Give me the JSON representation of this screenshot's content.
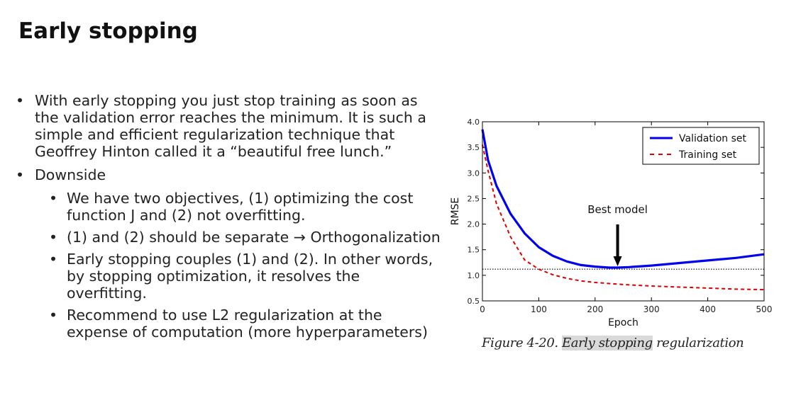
{
  "title": "Early stopping",
  "bullets": [
    {
      "text": "With early stopping you just stop training as soon as the validation error reaches the minimum. It is such a simple and efficient regularization technique that Geoffrey Hinton called it a “beautiful free lunch.”"
    },
    {
      "text": "Downside",
      "sub": [
        "We have two objectives, (1) optimizing the cost function J and (2) not overfitting.",
        "(1) and (2) should be separate → Orthogonalization",
        "Early stopping couples (1) and (2). In other words, by stopping optimization, it resolves the overfitting.",
        "Recommend to use L2 regularization at the expense of computation (more hyperparameters)"
      ]
    }
  ],
  "caption": {
    "prefix": "Figure 4-20. ",
    "highlight": "Early stopping",
    "suffix": " regularization"
  },
  "chart_data": {
    "type": "line",
    "xlabel": "Epoch",
    "ylabel": "RMSE",
    "xlim": [
      0,
      500
    ],
    "ylim": [
      0.5,
      4.0
    ],
    "xticks": [
      0,
      100,
      200,
      300,
      400,
      500
    ],
    "yticks": [
      0.5,
      1.0,
      1.5,
      2.0,
      2.5,
      3.0,
      3.5,
      4.0
    ],
    "legend_position": "top-right",
    "reference_line": {
      "y": 1.12,
      "style": "dotted"
    },
    "annotation": {
      "text": "Best model",
      "x": 240,
      "y": 1.15
    },
    "series": [
      {
        "name": "Validation set",
        "color": "#0000ee",
        "style": "solid",
        "x": [
          0,
          10,
          25,
          50,
          75,
          100,
          125,
          150,
          175,
          200,
          225,
          240,
          260,
          300,
          350,
          400,
          450,
          500
        ],
        "y": [
          3.85,
          3.25,
          2.75,
          2.2,
          1.82,
          1.55,
          1.38,
          1.27,
          1.2,
          1.17,
          1.15,
          1.15,
          1.16,
          1.19,
          1.24,
          1.29,
          1.34,
          1.41
        ]
      },
      {
        "name": "Training set",
        "color": "#dd0000",
        "style": "dashed",
        "x": [
          0,
          10,
          25,
          50,
          75,
          100,
          125,
          150,
          175,
          200,
          250,
          300,
          350,
          400,
          450,
          500
        ],
        "y": [
          3.55,
          3.05,
          2.4,
          1.75,
          1.3,
          1.12,
          1.01,
          0.94,
          0.89,
          0.86,
          0.82,
          0.79,
          0.77,
          0.75,
          0.73,
          0.72
        ]
      }
    ]
  }
}
